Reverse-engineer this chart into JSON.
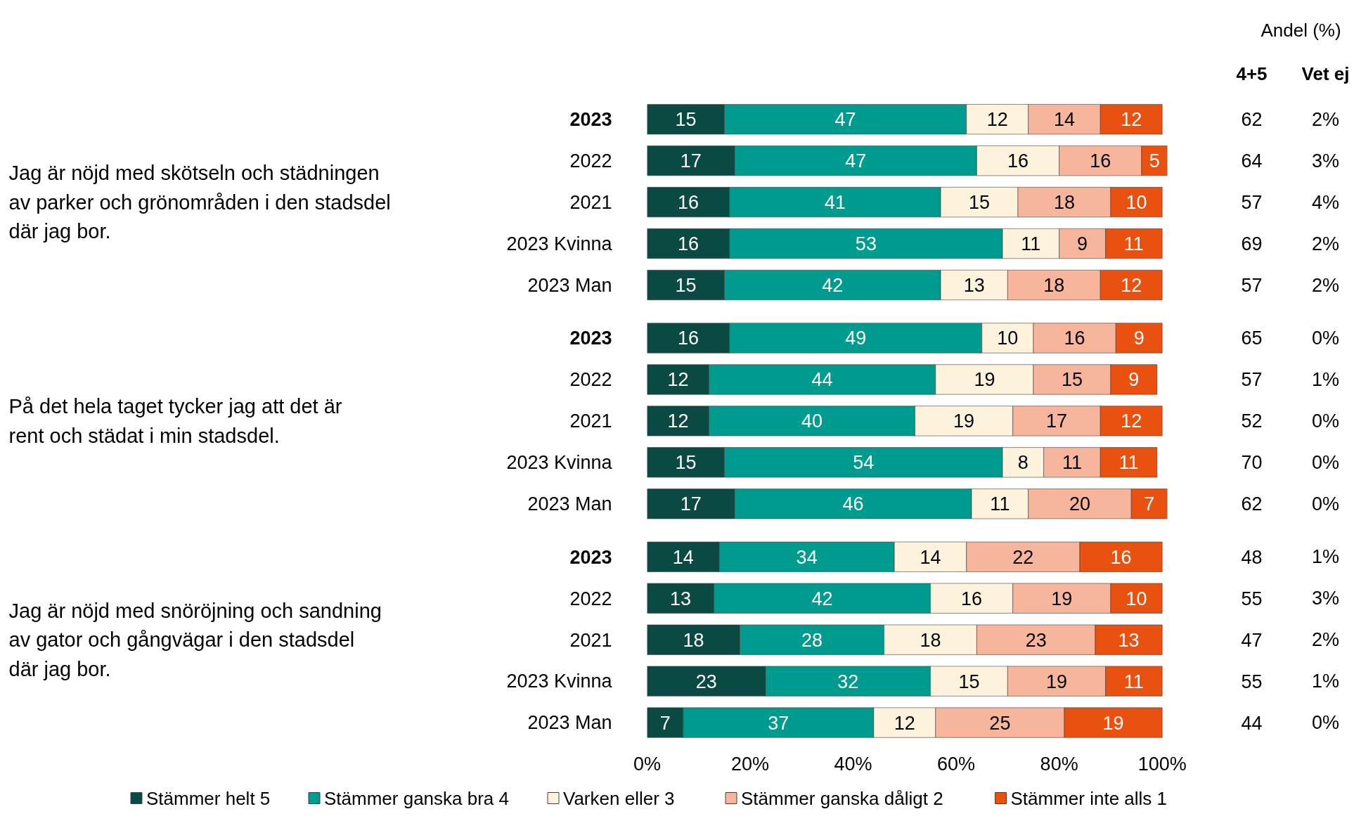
{
  "chart_data": {
    "type": "bar",
    "orientation": "horizontal",
    "stacked": true,
    "data_labels": true,
    "grid": false,
    "legend": "bottom",
    "categories": [
      "2023",
      "2022",
      "2021",
      "2023 Kvinna",
      "2023 Man",
      "2023",
      "2022",
      "2021",
      "2023 Kvinna",
      "2023 Man",
      "2023",
      "2022",
      "2021",
      "2023 Kvinna",
      "2023 Man"
    ],
    "xlim": [
      0,
      101
    ],
    "xticks": [
      {
        "value": 0,
        "label": "0%"
      },
      {
        "value": 20,
        "label": "20%"
      },
      {
        "value": 40,
        "label": "40%"
      },
      {
        "value": 60,
        "label": "60%"
      },
      {
        "value": 80,
        "label": "80%"
      },
      {
        "value": 100,
        "label": "100%"
      }
    ],
    "series": [
      {
        "name": "Stämmer helt 5",
        "color": "#0b4a43",
        "values": [
          15,
          17,
          16,
          16,
          15,
          16,
          12,
          12,
          15,
          17,
          14,
          13,
          18,
          23,
          7
        ]
      },
      {
        "name": "Stämmer ganska bra 4",
        "color": "#009b8f",
        "values": [
          47,
          47,
          41,
          53,
          42,
          49,
          44,
          40,
          54,
          46,
          34,
          42,
          28,
          32,
          37
        ]
      },
      {
        "name": "Varken eller 3",
        "color": "#fdf3dc",
        "values": [
          12,
          16,
          15,
          11,
          13,
          10,
          19,
          19,
          8,
          11,
          14,
          16,
          18,
          15,
          12
        ]
      },
      {
        "name": "Stämmer ganska dåligt 2",
        "color": "#f7b59b",
        "values": [
          14,
          16,
          18,
          9,
          18,
          16,
          15,
          17,
          11,
          20,
          22,
          19,
          23,
          19,
          25
        ]
      },
      {
        "name": "Stämmer inte alls 1",
        "color": "#e8510f",
        "values": [
          12,
          5,
          10,
          11,
          12,
          9,
          9,
          12,
          11,
          7,
          16,
          10,
          13,
          11,
          19
        ]
      }
    ],
    "annotations": [
      "Jag är nöjd med skötseln och städningen av parker och grönområden i den stadsdel där jag bor.",
      "På det hela taget tycker jag att det är rent och städat i min stadsdel.",
      "Jag är nöjd med snöröjning och sandning av gator och gångvägar i den stadsdel där jag bor.",
      "Andel (%)",
      "4+5",
      "Vet ej",
      "62",
      "64",
      "57",
      "69",
      "57",
      "65",
      "57",
      "52",
      "70",
      "62",
      "48",
      "55",
      "47",
      "55",
      "44",
      "2%",
      "3%",
      "4%",
      "2%",
      "2%",
      "0%",
      "1%",
      "0%",
      "0%",
      "0%",
      "1%",
      "3%",
      "2%",
      "1%",
      "0%"
    ]
  }
}
